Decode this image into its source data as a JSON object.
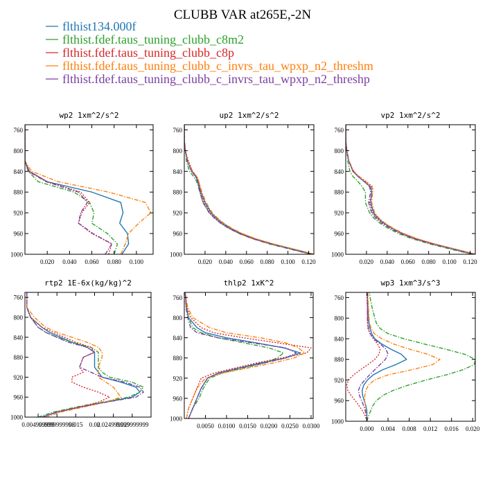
{
  "title": "CLUBB VAR at265E,-2N",
  "legend": [
    {
      "label": "flthist134.000f",
      "color": "#1f77b4",
      "dash": "solid"
    },
    {
      "label": "flthist.fdef.taus_tuning_clubb_c8m2",
      "color": "#2ca02c",
      "dash": "dashdot"
    },
    {
      "label": "flthist.fdef.taus_tuning_clubb_c8p",
      "color": "#d62728",
      "dash": "dot"
    },
    {
      "label": "flthist.fdef.taus_tuning_clubb_c_invrs_tau_wpxp_n2_threshm",
      "color": "#ff7f0e",
      "dash": "dashdot"
    },
    {
      "label": "flthist.fdef.taus_tuning_clubb_c_invrs_tau_wpxp_n2_threshp",
      "color": "#7b3fa0",
      "dash": "dashdot"
    }
  ],
  "chart_data": [
    {
      "type": "line",
      "title": "wp2  1xm^2/s^2",
      "ylim": [
        1000,
        750
      ],
      "yticks": [
        1000,
        960,
        920,
        880,
        840,
        800,
        760
      ],
      "xlim": [
        0,
        0.115
      ],
      "xticks": [
        0.02,
        0.04,
        0.06,
        0.08,
        0.1
      ],
      "xtick_labels": [
        "0.020",
        "0.040",
        "0.060",
        "0.080",
        "0.100"
      ],
      "y": [
        1000,
        980,
        960,
        940,
        920,
        900,
        880,
        860,
        840,
        820,
        800,
        780,
        760,
        750
      ],
      "series": [
        {
          "values": [
            0.087,
            0.093,
            0.092,
            0.085,
            0.088,
            0.086,
            0.06,
            0.02,
            0.004,
            0,
            0,
            0,
            0,
            0
          ]
        },
        {
          "values": [
            0.08,
            0.083,
            0.074,
            0.06,
            0.062,
            0.058,
            0.044,
            0.012,
            0.003,
            0,
            0,
            0,
            0,
            0
          ]
        },
        {
          "values": [
            0.075,
            0.078,
            0.06,
            0.048,
            0.051,
            0.058,
            0.05,
            0.02,
            0.004,
            0,
            0,
            0,
            0,
            0
          ]
        },
        {
          "values": [
            0.086,
            0.09,
            0.093,
            0.102,
            0.113,
            0.108,
            0.075,
            0.03,
            0.006,
            0,
            0,
            0,
            0,
            0
          ]
        },
        {
          "values": [
            0.072,
            0.078,
            0.061,
            0.048,
            0.05,
            0.056,
            0.048,
            0.019,
            0.003,
            0,
            0,
            0,
            0,
            0
          ]
        }
      ]
    },
    {
      "type": "line",
      "title": "up2  1xm^2/s^2",
      "ylim": [
        1000,
        750
      ],
      "yticks": [
        1000,
        960,
        920,
        880,
        840,
        800,
        760
      ],
      "xlim": [
        0,
        0.125
      ],
      "xticks": [
        0.02,
        0.04,
        0.06,
        0.08,
        0.1,
        0.12
      ],
      "xtick_labels": [
        "0.020",
        "0.040",
        "0.060",
        "0.080",
        "0.100",
        "0.120"
      ],
      "y": [
        1000,
        990,
        980,
        970,
        960,
        950,
        940,
        930,
        920,
        900,
        880,
        860,
        850,
        840,
        820,
        800,
        780,
        760,
        750
      ],
      "series": [
        {
          "values": [
            0.125,
            0.105,
            0.085,
            0.068,
            0.055,
            0.045,
            0.037,
            0.031,
            0.026,
            0.02,
            0.016,
            0.013,
            0.011,
            0.007,
            0.003,
            0.001,
            0,
            0,
            0
          ]
        },
        {
          "values": [
            0.122,
            0.102,
            0.082,
            0.066,
            0.053,
            0.043,
            0.035,
            0.029,
            0.024,
            0.018,
            0.015,
            0.012,
            0.009,
            0.005,
            0.002,
            0.001,
            0,
            0,
            0
          ]
        },
        {
          "values": [
            0.124,
            0.104,
            0.084,
            0.067,
            0.054,
            0.044,
            0.036,
            0.03,
            0.025,
            0.019,
            0.016,
            0.014,
            0.012,
            0.008,
            0.004,
            0.001,
            0,
            0,
            0
          ]
        },
        {
          "values": [
            0.126,
            0.106,
            0.086,
            0.069,
            0.056,
            0.046,
            0.038,
            0.032,
            0.027,
            0.021,
            0.017,
            0.014,
            0.012,
            0.008,
            0.003,
            0.001,
            0,
            0,
            0
          ]
        },
        {
          "values": [
            0.123,
            0.103,
            0.083,
            0.066,
            0.053,
            0.043,
            0.035,
            0.029,
            0.024,
            0.018,
            0.015,
            0.013,
            0.011,
            0.007,
            0.003,
            0.001,
            0,
            0,
            0
          ]
        }
      ]
    },
    {
      "type": "line",
      "title": "vp2  1xm^2/s^2",
      "ylim": [
        1000,
        750
      ],
      "yticks": [
        1000,
        960,
        920,
        880,
        840,
        800,
        760
      ],
      "xlim": [
        0,
        0.125
      ],
      "xticks": [
        0.02,
        0.04,
        0.06,
        0.08,
        0.1,
        0.12
      ],
      "xtick_labels": [
        "0.020",
        "0.040",
        "0.060",
        "0.080",
        "0.100",
        "0.120"
      ],
      "y": [
        1000,
        990,
        980,
        970,
        960,
        950,
        940,
        930,
        920,
        900,
        880,
        870,
        860,
        850,
        840,
        820,
        800,
        780,
        760,
        750
      ],
      "series": [
        {
          "values": [
            0.125,
            0.105,
            0.085,
            0.068,
            0.055,
            0.045,
            0.037,
            0.031,
            0.027,
            0.024,
            0.025,
            0.024,
            0.018,
            0.012,
            0.007,
            0.003,
            0.001,
            0,
            0,
            0
          ]
        },
        {
          "values": [
            0.122,
            0.101,
            0.081,
            0.064,
            0.051,
            0.041,
            0.033,
            0.027,
            0.023,
            0.019,
            0.019,
            0.016,
            0.012,
            0.007,
            0.004,
            0.002,
            0.001,
            0,
            0,
            0
          ]
        },
        {
          "values": [
            0.124,
            0.104,
            0.084,
            0.067,
            0.054,
            0.044,
            0.036,
            0.03,
            0.026,
            0.023,
            0.026,
            0.026,
            0.02,
            0.013,
            0.007,
            0.003,
            0.001,
            0,
            0,
            0
          ]
        },
        {
          "values": [
            0.126,
            0.106,
            0.086,
            0.069,
            0.056,
            0.046,
            0.038,
            0.032,
            0.028,
            0.025,
            0.026,
            0.025,
            0.019,
            0.013,
            0.008,
            0.003,
            0.001,
            0,
            0,
            0
          ]
        },
        {
          "values": [
            0.123,
            0.103,
            0.083,
            0.066,
            0.053,
            0.043,
            0.035,
            0.029,
            0.025,
            0.022,
            0.024,
            0.023,
            0.018,
            0.012,
            0.007,
            0.003,
            0.001,
            0,
            0,
            0
          ]
        }
      ]
    },
    {
      "type": "line",
      "title": "rtp2  1E-6x(kg/kg)^2",
      "ylim": [
        1000,
        750
      ],
      "yticks": [
        1000,
        960,
        920,
        880,
        840,
        800,
        760
      ],
      "xlim": [
        0.0015,
        0.035
      ],
      "xticks": [
        0.005,
        0.01,
        0.015,
        0.02,
        0.025,
        0.03
      ],
      "xtick_labels": [
        "0.004999999",
        "0.0099999998",
        "0.015",
        "0.02",
        "0.024999999",
        "0.029999999"
      ],
      "y": [
        1000,
        990,
        980,
        970,
        960,
        950,
        940,
        930,
        920,
        910,
        900,
        880,
        870,
        860,
        850,
        840,
        830,
        820,
        800,
        780,
        760,
        750
      ],
      "series": [
        {
          "values": [
            0.006,
            0.01,
            0.016,
            0.023,
            0.03,
            0.032,
            0.031,
            0.027,
            0.022,
            0.021,
            0.02,
            0.02,
            0.02,
            0.018,
            0.014,
            0.011,
            0.008,
            0.006,
            0.003,
            0.002,
            0.002,
            0.002
          ]
        },
        {
          "values": [
            0.005,
            0.009,
            0.015,
            0.022,
            0.029,
            0.032,
            0.033,
            0.03,
            0.024,
            0.022,
            0.021,
            0.021,
            0.021,
            0.019,
            0.014,
            0.01,
            0.007,
            0.005,
            0.003,
            0.002,
            0.002,
            0.002
          ]
        },
        {
          "values": [
            0.006,
            0.01,
            0.016,
            0.021,
            0.024,
            0.021,
            0.017,
            0.014,
            0.014,
            0.017,
            0.016,
            0.017,
            0.02,
            0.019,
            0.015,
            0.012,
            0.009,
            0.006,
            0.003,
            0.002,
            0.002,
            0.002
          ]
        },
        {
          "values": [
            0.007,
            0.011,
            0.017,
            0.023,
            0.027,
            0.026,
            0.025,
            0.023,
            0.021,
            0.021,
            0.021,
            0.022,
            0.022,
            0.021,
            0.018,
            0.014,
            0.01,
            0.007,
            0.004,
            0.002,
            0.002,
            0.002
          ]
        },
        {
          "values": [
            0.006,
            0.01,
            0.016,
            0.023,
            0.031,
            0.033,
            0.032,
            0.028,
            0.022,
            0.019,
            0.016,
            0.017,
            0.02,
            0.018,
            0.013,
            0.01,
            0.007,
            0.005,
            0.003,
            0.002,
            0.002,
            0.002
          ]
        }
      ]
    },
    {
      "type": "line",
      "title": "thlp2  1xK^2",
      "ylim": [
        1000,
        750
      ],
      "yticks": [
        1000,
        960,
        920,
        880,
        840,
        800,
        760
      ],
      "xlim": [
        0,
        0.0305
      ],
      "xticks": [
        0.005,
        0.01,
        0.015,
        0.02,
        0.025,
        0.03
      ],
      "xtick_labels": [
        "0.0050",
        "0.0100",
        "0.0150",
        "0.0200",
        "0.0250",
        "0.0300"
      ],
      "y": [
        1000,
        980,
        960,
        940,
        920,
        910,
        900,
        890,
        880,
        870,
        860,
        850,
        840,
        830,
        820,
        800,
        780,
        760,
        750
      ],
      "series": [
        {
          "values": [
            0.001,
            0.002,
            0.003,
            0.004,
            0.0055,
            0.008,
            0.013,
            0.018,
            0.024,
            0.0275,
            0.0235,
            0.017,
            0.01,
            0.005,
            0.003,
            0.001,
            0.0005,
            0.0003,
            0.0002
          ]
        },
        {
          "values": [
            0.001,
            0.002,
            0.0035,
            0.0045,
            0.006,
            0.009,
            0.014,
            0.019,
            0.022,
            0.0235,
            0.02,
            0.014,
            0.008,
            0.004,
            0.002,
            0.001,
            0.0005,
            0.0003,
            0.0002
          ]
        },
        {
          "values": [
            0.0005,
            0.001,
            0.002,
            0.003,
            0.004,
            0.007,
            0.012,
            0.017,
            0.023,
            0.029,
            0.03,
            0.022,
            0.014,
            0.007,
            0.004,
            0.0015,
            0.0006,
            0.0003,
            0.0002
          ]
        },
        {
          "values": [
            0.0005,
            0.001,
            0.002,
            0.003,
            0.005,
            0.009,
            0.015,
            0.021,
            0.026,
            0.0285,
            0.027,
            0.024,
            0.018,
            0.01,
            0.006,
            0.002,
            0.0008,
            0.0004,
            0.0002
          ]
        },
        {
          "values": [
            0.001,
            0.002,
            0.003,
            0.004,
            0.0055,
            0.008,
            0.013,
            0.019,
            0.024,
            0.0265,
            0.024,
            0.016,
            0.008,
            0.003,
            0.0015,
            0.0008,
            0.0004,
            0.0003,
            0.0002
          ]
        }
      ]
    },
    {
      "type": "line",
      "title": "wp3  1xm^3/s^3",
      "ylim": [
        1000,
        750
      ],
      "yticks": [
        1000,
        960,
        920,
        880,
        840,
        800,
        760
      ],
      "xlim": [
        -0.004,
        0.0205
      ],
      "xticks": [
        0.0,
        0.004,
        0.008,
        0.012,
        0.016,
        0.02
      ],
      "xtick_labels": [
        "0.000",
        "0.004",
        "0.008",
        "0.012",
        "0.016",
        "0.020"
      ],
      "y": [
        1000,
        990,
        980,
        970,
        960,
        950,
        940,
        930,
        920,
        910,
        900,
        890,
        880,
        870,
        860,
        850,
        840,
        830,
        820,
        810,
        800,
        780,
        760,
        750
      ],
      "series": [
        {
          "values": [
            0.0,
            0.0,
            0.0,
            -0.0002,
            -0.0005,
            -0.0008,
            -0.0009,
            -0.0006,
            0.0001,
            0.0012,
            0.003,
            0.0055,
            0.0075,
            0.0065,
            0.0045,
            0.0028,
            0.0015,
            0.0009,
            0.0006,
            0.0004,
            0.0003,
            0.0002,
            0.0001,
            0.0001
          ]
        },
        {
          "values": [
            0.0,
            0.0003,
            0.0007,
            0.0011,
            0.0018,
            0.003,
            0.005,
            0.0078,
            0.0112,
            0.015,
            0.0182,
            0.0203,
            0.0205,
            0.0185,
            0.0148,
            0.0108,
            0.007,
            0.004,
            0.0025,
            0.0018,
            0.0015,
            0.001,
            0.0006,
            0.0005
          ]
        },
        {
          "values": [
            0.0,
            -0.0003,
            -0.0008,
            -0.0015,
            -0.0022,
            -0.003,
            -0.0036,
            -0.0038,
            -0.0035,
            -0.0025,
            -0.0012,
            0.0002,
            0.0015,
            0.0023,
            0.0025,
            0.002,
            0.0012,
            0.0006,
            0.0002,
            0.0001,
            0.0001,
            0.0001,
            0.0,
            0.0
          ]
        },
        {
          "values": [
            0.0,
            -0.0001,
            -0.0002,
            -0.0003,
            -0.0004,
            -0.0004,
            -0.0002,
            0.0003,
            0.0014,
            0.004,
            0.0085,
            0.0125,
            0.0138,
            0.0115,
            0.008,
            0.005,
            0.0028,
            0.0014,
            0.0008,
            0.0005,
            0.0004,
            0.0003,
            0.0002,
            0.0002
          ]
        },
        {
          "values": [
            0.0,
            -0.0001,
            -0.0003,
            -0.0006,
            -0.001,
            -0.0014,
            -0.0016,
            -0.0012,
            -0.0004,
            0.0005,
            0.0015,
            0.0025,
            0.0035,
            0.004,
            0.0036,
            0.0025,
            0.0013,
            0.0006,
            0.0003,
            0.0002,
            0.0001,
            0.0001,
            0.0001,
            0.0001
          ]
        }
      ]
    }
  ]
}
